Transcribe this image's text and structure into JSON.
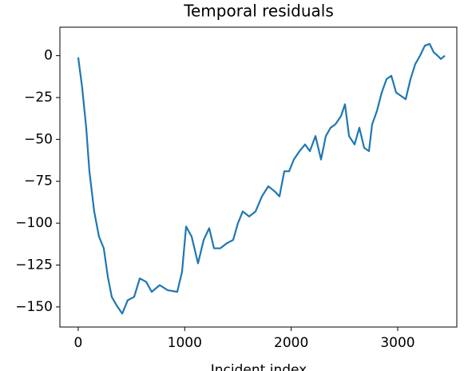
{
  "chart_data": {
    "type": "line",
    "title": "Temporal residuals",
    "xlabel": "Incident index",
    "color": "#1f77b4",
    "xlim": [
      -172,
      3555
    ],
    "ylim": [
      -162,
      17
    ],
    "xticks": [
      0,
      1000,
      2000,
      3000
    ],
    "yticks": [
      {
        "value": 0,
        "label": "0"
      },
      {
        "value": -25,
        "label": "−25"
      },
      {
        "value": -50,
        "label": "−50"
      },
      {
        "value": -75,
        "label": "−75"
      },
      {
        "value": -100,
        "label": "−100"
      },
      {
        "value": -125,
        "label": "−125"
      },
      {
        "value": -150,
        "label": "−150"
      }
    ],
    "x": [
      0,
      37,
      75,
      105,
      150,
      195,
      240,
      278,
      315,
      360,
      413,
      465,
      525,
      578,
      638,
      690,
      765,
      840,
      930,
      975,
      1013,
      1065,
      1125,
      1178,
      1230,
      1275,
      1335,
      1395,
      1455,
      1500,
      1545,
      1605,
      1665,
      1725,
      1785,
      1845,
      1890,
      1935,
      1980,
      2025,
      2078,
      2130,
      2175,
      2228,
      2280,
      2325,
      2370,
      2415,
      2468,
      2505,
      2543,
      2595,
      2640,
      2685,
      2730,
      2760,
      2805,
      2850,
      2895,
      2940,
      2985,
      3030,
      3075,
      3120,
      3165,
      3210,
      3255,
      3300,
      3338,
      3375,
      3405,
      3443
    ],
    "values": [
      -1,
      -19,
      -43,
      -69,
      -93,
      -108,
      -115,
      -132,
      -144,
      -149,
      -154,
      -146,
      -144,
      -133,
      -135,
      -141,
      -137,
      -140,
      -141,
      -129,
      -102,
      -108,
      -124,
      -110,
      -103,
      -115,
      -115,
      -112,
      -110,
      -100,
      -93,
      -96,
      -93,
      -84,
      -78,
      -81,
      -84,
      -69,
      -69,
      -62,
      -57,
      -53,
      -57,
      -48,
      -62,
      -48,
      -43,
      -41,
      -36,
      -29,
      -48,
      -53,
      -43,
      -55,
      -57,
      -41,
      -33,
      -22,
      -14,
      -12,
      -22,
      -24,
      -26,
      -14,
      -5,
      0,
      6,
      7,
      2,
      0,
      -2,
      0
    ]
  }
}
